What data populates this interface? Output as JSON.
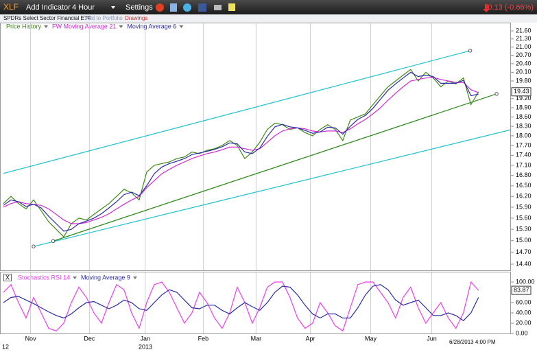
{
  "toolbar": {
    "symbol": "XLF",
    "add_indicator": "Add Indicator",
    "interval": "4 Hour",
    "settings": "Settings",
    "change": "-0.13 (-0.66%)",
    "name": "SPDRs Select Sector Financial ETF",
    "add_to_portfolio": "Add to Portfolio",
    "drawings": "Drawings"
  },
  "chart_data": [
    {
      "type": "line",
      "log_scale": true,
      "grid": "x",
      "x": [
        0,
        1,
        2,
        3,
        4,
        5,
        6,
        7,
        8,
        9,
        10,
        11,
        12,
        13,
        14,
        15,
        16,
        17,
        18,
        19,
        20,
        21,
        22,
        23,
        24,
        25,
        26,
        27,
        28,
        29,
        30,
        31,
        32,
        33,
        34,
        35,
        36,
        37,
        38,
        39,
        40,
        41,
        42,
        43,
        44,
        45,
        46,
        47,
        48,
        49,
        50,
        51,
        52,
        53,
        54,
        55,
        56,
        57,
        58,
        59,
        60,
        61,
        62,
        63
      ],
      "xlim": [
        0,
        67.3
      ],
      "xticks": [
        {
          "value": 3.6,
          "label": "Nov"
        },
        {
          "value": 11.4,
          "label": "Dec"
        },
        {
          "value": 18.8,
          "label": "Jan"
        },
        {
          "value": 26.5,
          "label": "Feb"
        },
        {
          "value": 33.5,
          "label": "Mar"
        },
        {
          "value": 40.7,
          "label": "Apr"
        },
        {
          "value": 48.7,
          "label": "May"
        },
        {
          "value": 56.8,
          "label": "Jun"
        }
      ],
      "ylim": [
        14.4,
        21.6
      ],
      "yticks": [
        {
          "value": 21.6,
          "label": "21.60"
        },
        {
          "value": 21.3,
          "label": "21.30"
        },
        {
          "value": 21.0,
          "label": "21.00"
        },
        {
          "value": 20.7,
          "label": "20.70"
        },
        {
          "value": 20.4,
          "label": "20.40"
        },
        {
          "value": 20.1,
          "label": "20.10"
        },
        {
          "value": 19.8,
          "label": "19.80"
        },
        {
          "value": 19.2,
          "label": "19.20"
        },
        {
          "value": 18.9,
          "label": "18.90"
        },
        {
          "value": 18.6,
          "label": "18.60"
        },
        {
          "value": 18.3,
          "label": "18.30"
        },
        {
          "value": 18.0,
          "label": "18.00"
        },
        {
          "value": 17.7,
          "label": "17.70"
        },
        {
          "value": 17.4,
          "label": "17.40"
        },
        {
          "value": 17.1,
          "label": "17.10"
        },
        {
          "value": 16.8,
          "label": "16.80"
        },
        {
          "value": 16.5,
          "label": "16.50"
        },
        {
          "value": 16.2,
          "label": "16.20"
        },
        {
          "value": 15.9,
          "label": "15.90"
        },
        {
          "value": 15.6,
          "label": "15.60"
        },
        {
          "value": 15.3,
          "label": "15.30"
        },
        {
          "value": 15.0,
          "label": "15.00"
        },
        {
          "value": 14.7,
          "label": "14.70"
        },
        {
          "value": 14.4,
          "label": "14.40"
        }
      ],
      "series": [
        {
          "name": "Price History",
          "color": "#3d8a12",
          "values": [
            16.0,
            16.2,
            16.0,
            15.85,
            16.1,
            15.8,
            15.5,
            15.3,
            15.1,
            15.45,
            15.6,
            15.55,
            15.7,
            15.85,
            16.0,
            16.2,
            16.4,
            16.3,
            16.1,
            16.9,
            17.1,
            17.15,
            17.2,
            17.3,
            17.35,
            17.5,
            17.45,
            17.55,
            17.6,
            17.7,
            17.85,
            17.7,
            17.3,
            17.5,
            17.8,
            18.2,
            18.4,
            18.35,
            18.2,
            18.25,
            18.1,
            18.0,
            18.2,
            18.35,
            18.2,
            17.85,
            18.5,
            18.6,
            18.7,
            19.0,
            19.3,
            19.6,
            19.8,
            20.0,
            20.2,
            19.8,
            20.1,
            19.9,
            19.6,
            19.8,
            19.7,
            19.9,
            19.0,
            19.43
          ]
        },
        {
          "name": "FW Moving Average 21",
          "color": "#d12ad1",
          "values": [
            15.9,
            16.0,
            16.05,
            16.0,
            15.98,
            15.95,
            15.85,
            15.7,
            15.55,
            15.45,
            15.45,
            15.48,
            15.55,
            15.62,
            15.72,
            15.85,
            15.98,
            16.1,
            16.2,
            16.45,
            16.65,
            16.85,
            16.98,
            17.1,
            17.2,
            17.3,
            17.38,
            17.45,
            17.5,
            17.57,
            17.65,
            17.65,
            17.6,
            17.55,
            17.6,
            17.8,
            18.0,
            18.15,
            18.22,
            18.25,
            18.22,
            18.15,
            18.12,
            18.15,
            18.15,
            18.1,
            18.22,
            18.38,
            18.52,
            18.7,
            18.9,
            19.15,
            19.38,
            19.6,
            19.8,
            19.85,
            19.9,
            19.92,
            19.85,
            19.8,
            19.75,
            19.75,
            19.5,
            19.4
          ]
        },
        {
          "name": "Moving Average 6",
          "color": "#2b2ba8",
          "values": [
            15.95,
            16.1,
            16.05,
            15.92,
            15.98,
            15.88,
            15.65,
            15.45,
            15.25,
            15.3,
            15.45,
            15.52,
            15.6,
            15.72,
            15.88,
            16.05,
            16.25,
            16.32,
            16.22,
            16.5,
            16.85,
            17.05,
            17.15,
            17.22,
            17.3,
            17.42,
            17.47,
            17.52,
            17.58,
            17.66,
            17.78,
            17.75,
            17.5,
            17.45,
            17.62,
            17.98,
            18.28,
            18.36,
            18.28,
            18.25,
            18.17,
            18.08,
            18.12,
            18.27,
            18.25,
            18.05,
            18.3,
            18.52,
            18.65,
            18.88,
            19.18,
            19.48,
            19.7,
            19.9,
            20.1,
            19.95,
            20.0,
            19.95,
            19.72,
            19.72,
            19.72,
            19.82,
            19.3,
            19.35
          ]
        }
      ],
      "trend_lines": [
        {
          "color": "#2bc4d0",
          "x": [
            0,
            61.9
          ],
          "values": [
            16.86,
            20.87
          ]
        },
        {
          "color": "#2bc4d0",
          "x": [
            4.0,
            67.3
          ],
          "values": [
            14.85,
            18.19
          ]
        },
        {
          "color": "#2d8a1a",
          "x": [
            6.6,
            65.4
          ],
          "values": [
            14.99,
            19.36
          ]
        }
      ],
      "date_label": "6/28/2013 4:00 PM",
      "year_labels": [
        "12",
        "2013"
      ]
    },
    {
      "type": "line",
      "ylim": [
        0,
        100
      ],
      "yticks": [
        {
          "value": 100,
          "label": "100.00"
        },
        {
          "value": 60,
          "label": "60.00"
        },
        {
          "value": 40,
          "label": "40.00"
        },
        {
          "value": 20,
          "label": "20.00"
        },
        {
          "value": 0,
          "label": "0.00"
        }
      ],
      "series": [
        {
          "name": "Stochastics RSI 14",
          "color": "#f03cf0",
          "values": [
            80,
            95,
            60,
            30,
            70,
            40,
            10,
            5,
            20,
            60,
            90,
            70,
            40,
            20,
            60,
            95,
            85,
            40,
            10,
            60,
            95,
            100,
            80,
            50,
            20,
            40,
            80,
            60,
            30,
            10,
            40,
            90,
            60,
            20,
            50,
            90,
            100,
            100,
            70,
            30,
            10,
            20,
            60,
            40,
            15,
            5,
            50,
            95,
            100,
            100,
            80,
            60,
            30,
            70,
            90,
            50,
            20,
            40,
            60,
            30,
            10,
            40,
            100,
            83.87
          ]
        },
        {
          "name": "Moving Average 9",
          "color": "#2b2ba8",
          "values": [
            60,
            70,
            72,
            65,
            58,
            50,
            42,
            35,
            30,
            38,
            50,
            60,
            62,
            55,
            48,
            55,
            65,
            60,
            48,
            45,
            60,
            75,
            85,
            80,
            65,
            50,
            48,
            55,
            55,
            45,
            38,
            50,
            60,
            52,
            45,
            60,
            80,
            92,
            90,
            75,
            55,
            38,
            30,
            38,
            38,
            30,
            30,
            50,
            75,
            92,
            95,
            85,
            65,
            55,
            60,
            65,
            50,
            35,
            35,
            40,
            35,
            25,
            40,
            70
          ]
        }
      ]
    }
  ]
}
